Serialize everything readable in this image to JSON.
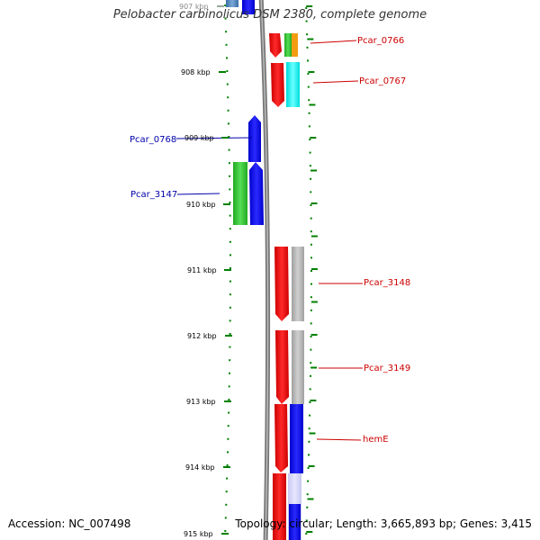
{
  "title": "Pelobacter carbinolicus DSM 2380, complete genome",
  "footer": {
    "accession": "Accession: NC_007498",
    "topology": "Topology: circular; Length: 3,665,893 bp; Genes: 3,415"
  },
  "axis": {
    "unit": "kbp",
    "ticks": [
      "907 kbp",
      "908 kbp",
      "909 kbp",
      "910 kbp",
      "911 kbp",
      "912 kbp",
      "913 kbp",
      "914 kbp",
      "915 kbp"
    ]
  },
  "gene_labels": [
    {
      "name": "Pcar_0766",
      "color": "#cc0000"
    },
    {
      "name": "Pcar_0767",
      "color": "#cc0000"
    },
    {
      "name": "Pcar_0768",
      "color": "#0000aa"
    },
    {
      "name": "Pcar_3147",
      "color": "#0000aa"
    },
    {
      "name": "Pcar_3148",
      "color": "#cc0000"
    },
    {
      "name": "Pcar_3149",
      "color": "#cc0000"
    },
    {
      "name": "hemE",
      "color": "#cc0000"
    }
  ],
  "colors": {
    "forward_strand": "#ee0000",
    "reverse_strand": "#0000ee",
    "tick": "#008000",
    "backbone": "#888888"
  }
}
